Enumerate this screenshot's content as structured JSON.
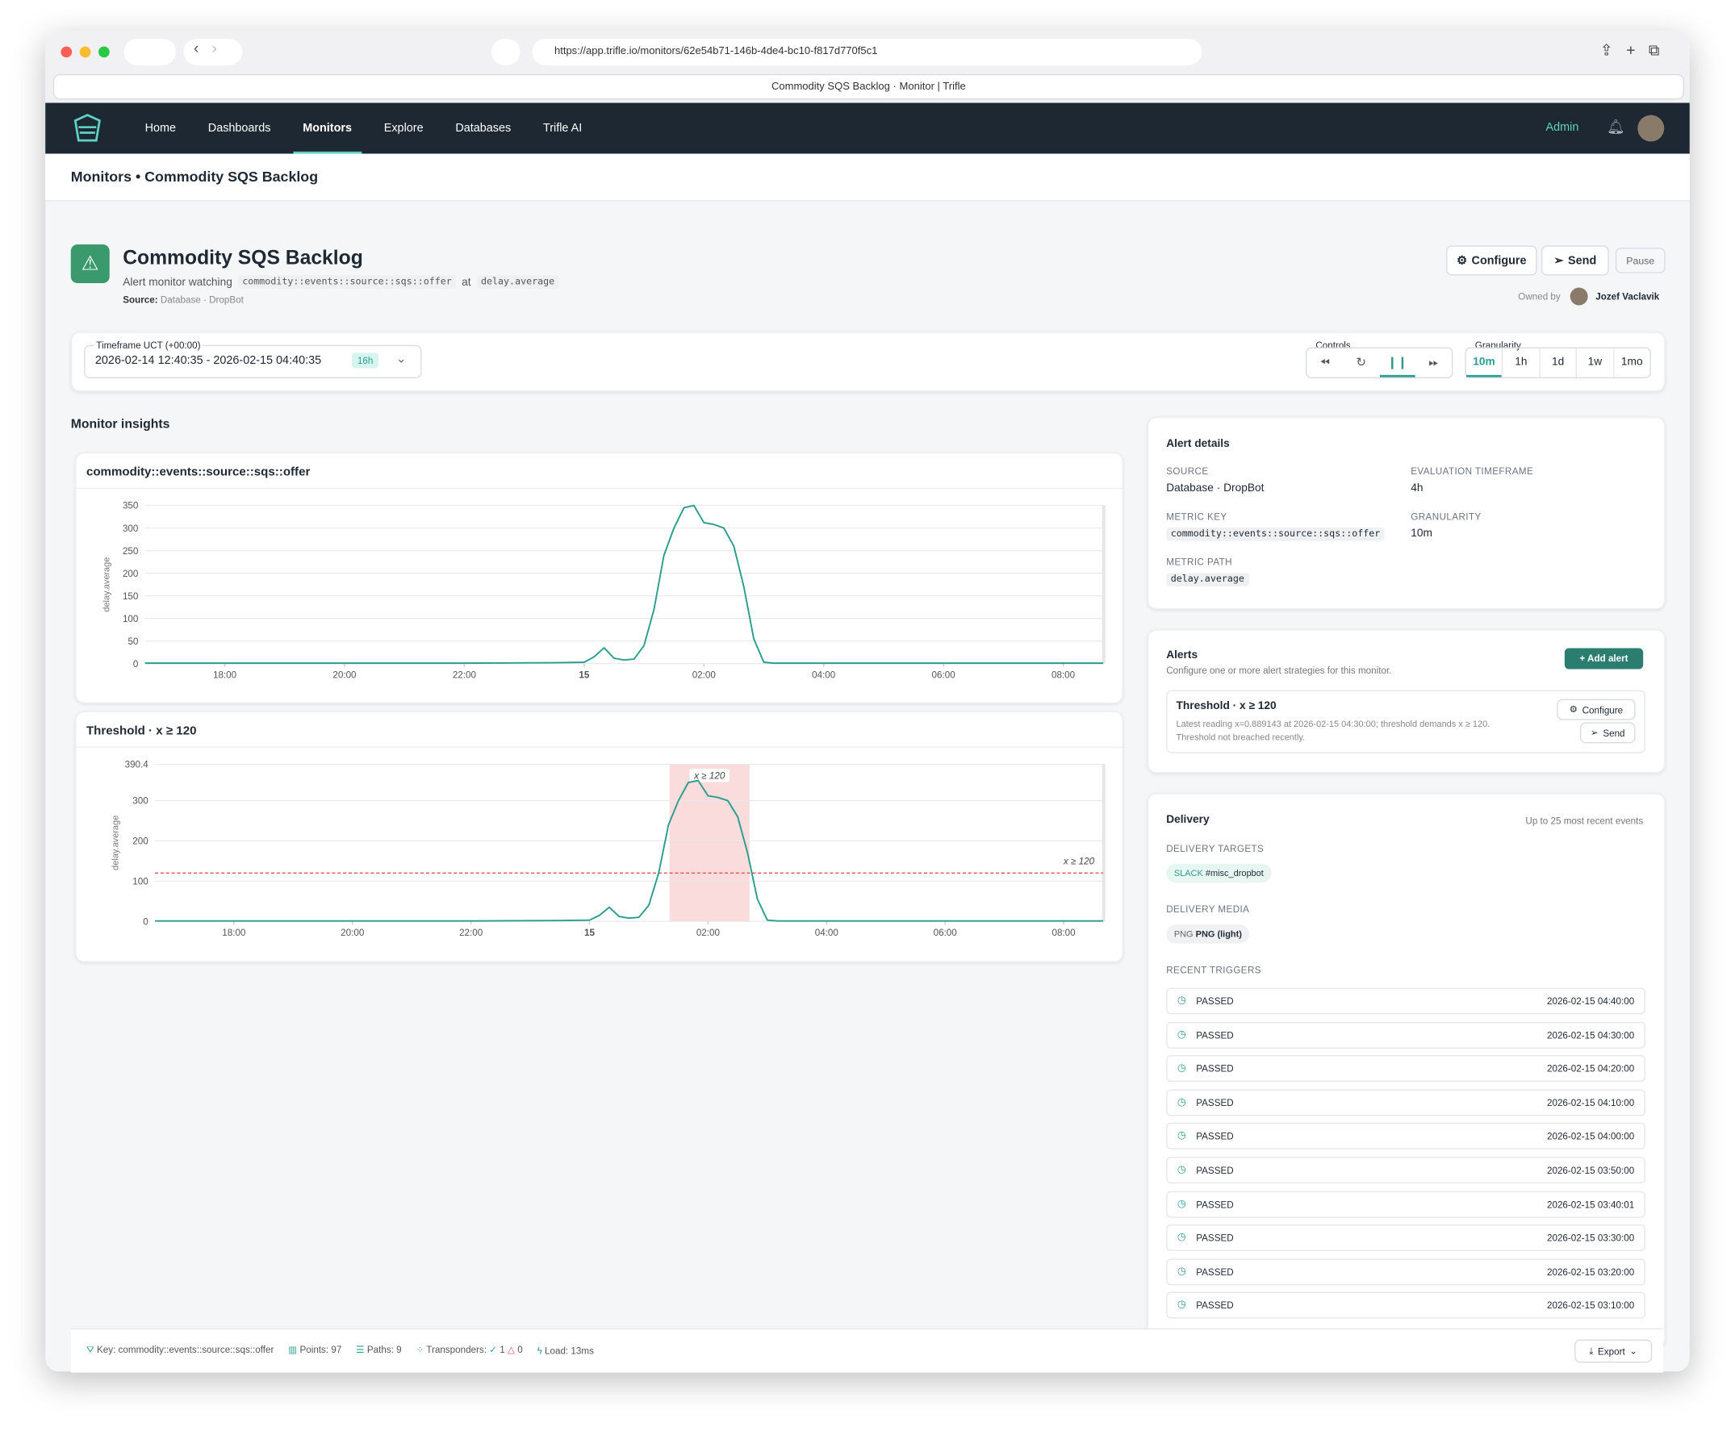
{
  "browser": {
    "url": "https://app.trifle.io/monitors/62e54b71-146b-4de4-bc10-f817d770f5c1",
    "tab_title": "Commodity SQS Backlog · Monitor | Trifle"
  },
  "nav": {
    "items": [
      "Home",
      "Dashboards",
      "Monitors",
      "Explore",
      "Databases",
      "Trifle AI"
    ],
    "active": 2,
    "admin": "Admin"
  },
  "breadcrumb": "Monitors • Commodity SQS Backlog",
  "header": {
    "title": "Commodity SQS Backlog",
    "subtitle_prefix": "Alert monitor watching",
    "metric_key": "commodity::events::source::sqs::offer",
    "at": "at",
    "metric_path": "delay.average",
    "source_label": "Source:",
    "source": "Database · DropBot",
    "buttons": [
      "Configure",
      "Send",
      "Pause"
    ],
    "owned_by": "Owned by",
    "owner": "Jozef Vaclavik"
  },
  "timeframe": {
    "label": "Timeframe UCT (+00:00)",
    "range": "2026-02-14 12:40:35 - 2026-02-15 04:40:35",
    "badge": "16h"
  },
  "controls": {
    "label": "Controls"
  },
  "granularity": {
    "label": "Granularity",
    "options": [
      "10m",
      "1h",
      "1d",
      "1w",
      "1mo"
    ],
    "active": 0
  },
  "insights_title": "Monitor insights",
  "chart_data": [
    {
      "type": "line",
      "title": "commodity::events::source::sqs::offer",
      "ylabel": "delay.average",
      "color": "#2a9d8f",
      "x": [
        16.667,
        18,
        20,
        22,
        23.5,
        24,
        24.167,
        24.333,
        24.5,
        24.667,
        24.833,
        25,
        25.167,
        25.333,
        25.5,
        25.667,
        25.833,
        26,
        26.167,
        26.333,
        26.5,
        26.667,
        26.833,
        27,
        27.167,
        28,
        30,
        32,
        32.667
      ],
      "values": [
        1,
        1,
        1,
        1,
        2,
        3,
        15,
        35,
        12,
        8,
        10,
        40,
        120,
        240,
        300,
        345,
        350,
        312,
        308,
        300,
        260,
        170,
        55,
        3,
        1,
        1,
        1,
        1,
        1
      ],
      "xlim": [
        16.667,
        32.667
      ],
      "xticks": [
        {
          "value": 18,
          "label": "18:00"
        },
        {
          "value": 20,
          "label": "20:00"
        },
        {
          "value": 22,
          "label": "22:00"
        },
        {
          "value": 24,
          "label": "15"
        },
        {
          "value": 26,
          "label": "02:00"
        },
        {
          "value": 28,
          "label": "04:00"
        },
        {
          "value": 30,
          "label": "06:00"
        },
        {
          "value": 32,
          "label": "08:00"
        }
      ],
      "ylim": [
        0,
        350
      ],
      "yticks": [
        0,
        50,
        100,
        150,
        200,
        250,
        300,
        350
      ],
      "grid": true
    },
    {
      "type": "line",
      "title": "Threshold · x ≥ 120",
      "ylabel": "delay.average",
      "color": "#2a9d8f",
      "x": [
        16.667,
        18,
        20,
        22,
        23.5,
        24,
        24.167,
        24.333,
        24.5,
        24.667,
        24.833,
        25,
        25.167,
        25.333,
        25.5,
        25.667,
        25.833,
        26,
        26.167,
        26.333,
        26.5,
        26.667,
        26.833,
        27,
        27.167,
        28,
        30,
        32,
        32.667
      ],
      "values": [
        1,
        1,
        1,
        1,
        2,
        3,
        15,
        35,
        12,
        8,
        10,
        40,
        120,
        240,
        300,
        345,
        350,
        312,
        308,
        300,
        260,
        170,
        55,
        3,
        1,
        1,
        1,
        1,
        1
      ],
      "xlim": [
        16.667,
        32.667
      ],
      "xticks": [
        {
          "value": 18,
          "label": "18:00"
        },
        {
          "value": 20,
          "label": "20:00"
        },
        {
          "value": 22,
          "label": "22:00"
        },
        {
          "value": 24,
          "label": "15"
        },
        {
          "value": 26,
          "label": "02:00"
        },
        {
          "value": 28,
          "label": "04:00"
        },
        {
          "value": 30,
          "label": "06:00"
        },
        {
          "value": 32,
          "label": "08:00"
        }
      ],
      "ylim": [
        0,
        390.4
      ],
      "yticks": [
        0,
        100,
        200,
        300,
        390.4
      ],
      "grid": true,
      "threshold": 120,
      "threshold_color": "#e05656",
      "threshold_label": "x ≥ 120",
      "breach_x": [
        25.35,
        26.7
      ],
      "breach_color": "#fadcdc",
      "breach_label": "x ≥ 120"
    }
  ],
  "alert_details": {
    "title": "Alert details",
    "fields": [
      {
        "label": "SOURCE",
        "value": "Database · DropBot"
      },
      {
        "label": "EVALUATION TIMEFRAME",
        "value": "4h"
      },
      {
        "label": "METRIC KEY",
        "value": "commodity::events::source::sqs::offer"
      },
      {
        "label": "GRANULARITY",
        "value": "10m"
      },
      {
        "label": "METRIC PATH",
        "value": "delay.average"
      }
    ]
  },
  "alerts": {
    "title": "Alerts",
    "subtitle": "Configure one or more alert strategies for this monitor.",
    "add": "Add alert",
    "item": {
      "title": "Threshold · x ≥ 120",
      "text": "Latest reading x=0.889143 at 2026-02-15 04:30:00; threshold demands x ≥ 120.",
      "status": "Threshold not breached recently.",
      "buttons": [
        "Configure",
        "Send"
      ]
    }
  },
  "delivery": {
    "title": "Delivery",
    "note": "Up to 25 most recent events",
    "targets_label": "DELIVERY TARGETS",
    "target_type": "SLACK",
    "target": "#misc_dropbot",
    "media_label": "DELIVERY MEDIA",
    "media_type": "PNG",
    "media": "PNG (light)",
    "triggers_label": "RECENT TRIGGERS",
    "triggers": [
      {
        "status": "PASSED",
        "time": "2026-02-15 04:40:00"
      },
      {
        "status": "PASSED",
        "time": "2026-02-15 04:30:00"
      },
      {
        "status": "PASSED",
        "time": "2026-02-15 04:20:00"
      },
      {
        "status": "PASSED",
        "time": "2026-02-15 04:10:00"
      },
      {
        "status": "PASSED",
        "time": "2026-02-15 04:00:00"
      },
      {
        "status": "PASSED",
        "time": "2026-02-15 03:50:00"
      },
      {
        "status": "PASSED",
        "time": "2026-02-15 03:40:01"
      },
      {
        "status": "PASSED",
        "time": "2026-02-15 03:30:00"
      },
      {
        "status": "PASSED",
        "time": "2026-02-15 03:20:00"
      },
      {
        "status": "PASSED",
        "time": "2026-02-15 03:10:00"
      }
    ]
  },
  "footer": {
    "key": "Key: commodity::events::source::sqs::offer",
    "points": "Points: 97",
    "paths": "Paths: 9",
    "transponders": "Transponders:",
    "ok": "1",
    "fail": "0",
    "load": "Load: 13ms",
    "export": "Export"
  }
}
